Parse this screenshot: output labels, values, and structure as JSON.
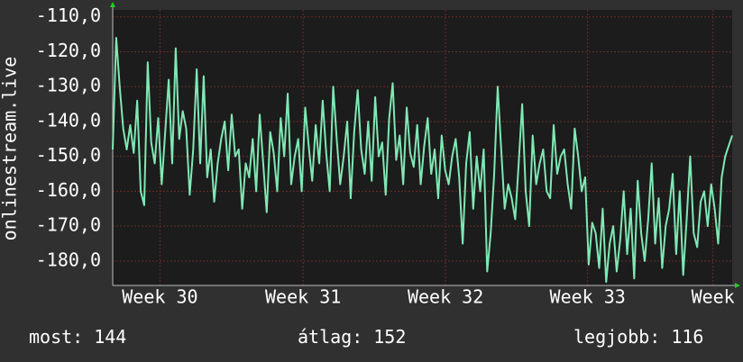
{
  "chart_data": {
    "type": "line",
    "y_label": "onlinestream.live",
    "series": [
      {
        "name": null,
        "color": "#7fe8b4",
        "values": [
          -148,
          -116,
          -130,
          -142,
          -148,
          -141,
          -149,
          -134,
          -160,
          -164,
          -123,
          -146,
          -152,
          -139,
          -158,
          -143,
          -128,
          -152,
          -119,
          -145,
          -137,
          -142,
          -161,
          -148,
          -125,
          -152,
          -127,
          -156,
          -148,
          -163,
          -152,
          -145,
          -140,
          -154,
          -138,
          -150,
          -148,
          -165,
          -152,
          -156,
          -145,
          -160,
          -138,
          -152,
          -166,
          -143,
          -149,
          -160,
          -139,
          -150,
          -132,
          -158,
          -150,
          -145,
          -160,
          -136,
          -147,
          -157,
          -141,
          -152,
          -134,
          -149,
          -160,
          -130,
          -145,
          -158,
          -150,
          -140,
          -162,
          -143,
          -131,
          -148,
          -155,
          -140,
          -157,
          -133,
          -150,
          -146,
          -161,
          -139,
          -129,
          -151,
          -144,
          -158,
          -136,
          -149,
          -153,
          -141,
          -158,
          -147,
          -139,
          -155,
          -148,
          -162,
          -144,
          -154,
          -158,
          -150,
          -145,
          -156,
          -175,
          -152,
          -143,
          -165,
          -150,
          -160,
          -148,
          -183,
          -172,
          -155,
          -130,
          -148,
          -165,
          -158,
          -162,
          -168,
          -152,
          -135,
          -160,
          -170,
          -144,
          -158,
          -152,
          -148,
          -160,
          -162,
          -141,
          -155,
          -150,
          -148,
          -158,
          -165,
          -142,
          -150,
          -160,
          -156,
          -181,
          -169,
          -172,
          -182,
          -165,
          -186,
          -175,
          -170,
          -183,
          -174,
          -160,
          -178,
          -165,
          -185,
          -157,
          -172,
          -180,
          -168,
          -152,
          -175,
          -162,
          -182,
          -170,
          -165,
          -155,
          -178,
          -160,
          -184,
          -168,
          -150,
          -172,
          -176,
          -163,
          -160,
          -170,
          -158,
          -165,
          -175,
          -156,
          -150,
          -147,
          -144
        ]
      }
    ],
    "xlim": [
      0,
      177
    ],
    "xticks": [
      {
        "value": 13.5,
        "label": "Week 30"
      },
      {
        "value": 54.4,
        "label": "Week 31"
      },
      {
        "value": 95.1,
        "label": "Week 32"
      },
      {
        "value": 135.7,
        "label": "Week 33"
      },
      {
        "value": 171.5,
        "label": "Week"
      }
    ],
    "ylim": [
      -187,
      -108
    ],
    "yticks": [
      {
        "value": -110,
        "label": "-110,0"
      },
      {
        "value": -120,
        "label": "-120,0"
      },
      {
        "value": -130,
        "label": "-130,0"
      },
      {
        "value": -140,
        "label": "-140,0"
      },
      {
        "value": -150,
        "label": "-150,0"
      },
      {
        "value": -160,
        "label": "-160,0"
      },
      {
        "value": -170,
        "label": "-170,0"
      },
      {
        "value": -180,
        "label": "-180,0"
      }
    ],
    "grid": true,
    "stats": [
      {
        "label": "most:",
        "value": 144
      },
      {
        "label": "átlag:",
        "value": 152
      },
      {
        "label": "legjobb:",
        "value": 116
      }
    ]
  }
}
